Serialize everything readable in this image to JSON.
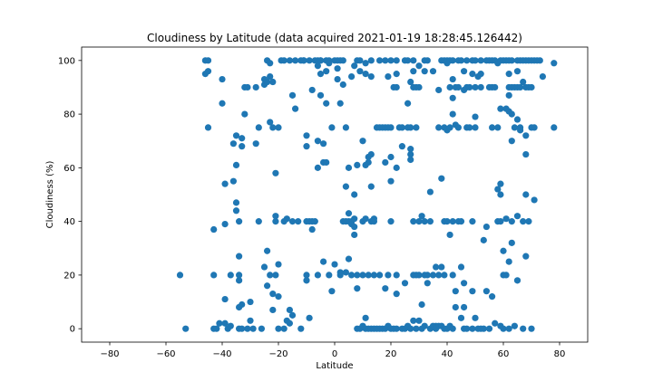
{
  "chart_data": {
    "type": "scatter",
    "title": "Cloudiness by Latitude (data acquired 2021-01-19 18:28:45.126442)",
    "xlabel": "Latitude",
    "ylabel": "Cloudiness (%)",
    "xlim": [
      -90,
      90
    ],
    "ylim": [
      -5,
      105
    ],
    "xticks": [
      -80,
      -60,
      -40,
      -20,
      0,
      20,
      40,
      60,
      80
    ],
    "yticks": [
      0,
      20,
      40,
      60,
      80,
      100
    ],
    "grid": false,
    "legend": "none",
    "marker_color": "#1f77b4",
    "points": [
      [
        -55,
        20
      ],
      [
        -53,
        0
      ],
      [
        -46,
        100
      ],
      [
        -45,
        100
      ],
      [
        -46,
        95
      ],
      [
        -45,
        96
      ],
      [
        -45,
        75
      ],
      [
        -43,
        37
      ],
      [
        -43,
        20
      ],
      [
        -43,
        0
      ],
      [
        -42,
        0
      ],
      [
        -41,
        2
      ],
      [
        -40,
        93
      ],
      [
        -40,
        84
      ],
      [
        -39,
        54
      ],
      [
        -39,
        39
      ],
      [
        -39,
        11
      ],
      [
        -39,
        2
      ],
      [
        -38,
        0
      ],
      [
        -37,
        20
      ],
      [
        -37,
        1
      ],
      [
        -36,
        55
      ],
      [
        -36,
        69
      ],
      [
        -35,
        72
      ],
      [
        -35,
        61
      ],
      [
        -35,
        47
      ],
      [
        -35,
        44
      ],
      [
        -34,
        40
      ],
      [
        -34,
        27
      ],
      [
        -34,
        20
      ],
      [
        -34,
        18
      ],
      [
        -34,
        8
      ],
      [
        -34,
        0
      ],
      [
        -33,
        71
      ],
      [
        -33,
        68
      ],
      [
        -33,
        0
      ],
      [
        -33,
        9
      ],
      [
        -32,
        90
      ],
      [
        -32,
        80
      ],
      [
        -31,
        90
      ],
      [
        -31,
        0
      ],
      [
        -30,
        10
      ],
      [
        -30,
        3
      ],
      [
        -29,
        0
      ],
      [
        -28,
        90
      ],
      [
        -28,
        69
      ],
      [
        -27,
        75
      ],
      [
        -27,
        40
      ],
      [
        -26,
        0
      ],
      [
        -25,
        91
      ],
      [
        -25,
        23
      ],
      [
        -25,
        93
      ],
      [
        -24,
        100
      ],
      [
        -24,
        92
      ],
      [
        -24,
        29
      ],
      [
        -24,
        16
      ],
      [
        -23,
        99
      ],
      [
        -23,
        94
      ],
      [
        -23,
        77
      ],
      [
        -23,
        20
      ],
      [
        -22,
        92
      ],
      [
        -22,
        75
      ],
      [
        -22,
        13
      ],
      [
        -22,
        7
      ],
      [
        -21,
        58
      ],
      [
        -21,
        40
      ],
      [
        -21,
        42
      ],
      [
        -21,
        20
      ],
      [
        -20,
        24
      ],
      [
        -20,
        12
      ],
      [
        -20,
        0
      ],
      [
        -20,
        75
      ],
      [
        -19,
        100
      ],
      [
        -18,
        100
      ],
      [
        -18,
        40
      ],
      [
        -18,
        0
      ],
      [
        -17,
        3
      ],
      [
        -17,
        41
      ],
      [
        -16,
        100
      ],
      [
        -16,
        7
      ],
      [
        -16,
        2
      ],
      [
        -15,
        87
      ],
      [
        -15,
        5
      ],
      [
        -15,
        40
      ],
      [
        -14,
        100
      ],
      [
        -14,
        82
      ],
      [
        -13,
        40
      ],
      [
        -12,
        100
      ],
      [
        -12,
        0
      ],
      [
        -11,
        100
      ],
      [
        -11,
        100
      ],
      [
        -10,
        72
      ],
      [
        -10,
        68
      ],
      [
        -10,
        40
      ],
      [
        -10,
        20
      ],
      [
        -10,
        18
      ],
      [
        -9,
        100
      ],
      [
        -9,
        40
      ],
      [
        -9,
        4
      ],
      [
        -8,
        89
      ],
      [
        -8,
        40
      ],
      [
        -8,
        37
      ],
      [
        -7,
        100
      ],
      [
        -7,
        40
      ],
      [
        -6,
        100
      ],
      [
        -6,
        70
      ],
      [
        -6,
        98
      ],
      [
        -6,
        60
      ],
      [
        -6,
        20
      ],
      [
        -5,
        100
      ],
      [
        -5,
        95
      ],
      [
        -5,
        87
      ],
      [
        -5,
        100
      ],
      [
        -4,
        69
      ],
      [
        -4,
        62
      ],
      [
        -4,
        25
      ],
      [
        -3,
        100
      ],
      [
        -3,
        96
      ],
      [
        -3,
        62
      ],
      [
        -3,
        84
      ],
      [
        -2,
        100
      ],
      [
        -2,
        99
      ],
      [
        -2,
        20
      ],
      [
        -1,
        75
      ],
      [
        -1,
        14
      ],
      [
        0,
        100
      ],
      [
        0,
        24
      ],
      [
        1,
        100
      ],
      [
        1,
        97
      ],
      [
        1,
        93
      ],
      [
        2,
        100
      ],
      [
        2,
        20
      ],
      [
        2,
        21
      ],
      [
        2,
        84
      ],
      [
        3,
        91
      ],
      [
        3,
        100
      ],
      [
        3,
        40
      ],
      [
        4,
        40
      ],
      [
        4,
        53
      ],
      [
        4,
        75
      ],
      [
        4,
        21
      ],
      [
        5,
        40
      ],
      [
        5,
        60
      ],
      [
        5,
        26
      ],
      [
        5,
        43
      ],
      [
        6,
        40
      ],
      [
        6,
        94
      ],
      [
        6,
        20
      ],
      [
        6,
        39
      ],
      [
        7,
        98
      ],
      [
        7,
        41
      ],
      [
        7,
        38
      ],
      [
        7,
        35
      ],
      [
        7,
        50
      ],
      [
        8,
        100
      ],
      [
        8,
        61
      ],
      [
        8,
        20
      ],
      [
        8,
        15
      ],
      [
        8,
        0
      ],
      [
        9,
        0
      ],
      [
        9,
        100
      ],
      [
        9,
        96
      ],
      [
        10,
        70
      ],
      [
        10,
        40
      ],
      [
        10,
        20
      ],
      [
        10,
        1
      ],
      [
        11,
        99
      ],
      [
        11,
        95
      ],
      [
        11,
        61
      ],
      [
        11,
        41
      ],
      [
        11,
        4
      ],
      [
        11,
        0
      ],
      [
        12,
        64
      ],
      [
        12,
        62
      ],
      [
        12,
        20
      ],
      [
        12,
        0
      ],
      [
        13,
        100
      ],
      [
        13,
        94
      ],
      [
        13,
        65
      ],
      [
        13,
        40
      ],
      [
        13,
        53
      ],
      [
        13,
        0
      ],
      [
        14,
        41
      ],
      [
        14,
        40
      ],
      [
        14,
        20
      ],
      [
        14,
        0
      ],
      [
        15,
        75
      ],
      [
        15,
        0
      ],
      [
        16,
        100
      ],
      [
        16,
        75
      ],
      [
        16,
        20
      ],
      [
        16,
        0
      ],
      [
        17,
        75
      ],
      [
        17,
        0
      ],
      [
        18,
        100
      ],
      [
        18,
        75
      ],
      [
        18,
        62
      ],
      [
        18,
        15
      ],
      [
        18,
        0
      ],
      [
        19,
        94
      ],
      [
        19,
        75
      ],
      [
        19,
        20
      ],
      [
        19,
        1
      ],
      [
        20,
        100
      ],
      [
        20,
        75
      ],
      [
        20,
        64
      ],
      [
        20,
        55
      ],
      [
        20,
        40
      ],
      [
        20,
        0
      ],
      [
        21,
        90
      ],
      [
        21,
        0
      ],
      [
        22,
        100
      ],
      [
        22,
        95
      ],
      [
        22,
        90
      ],
      [
        22,
        60
      ],
      [
        22,
        20
      ],
      [
        22,
        13
      ],
      [
        22,
        0
      ],
      [
        23,
        75
      ],
      [
        24,
        75
      ],
      [
        24,
        68
      ],
      [
        24,
        0
      ],
      [
        25,
        100
      ],
      [
        25,
        17
      ],
      [
        25,
        0
      ],
      [
        26,
        100
      ],
      [
        26,
        84
      ],
      [
        26,
        75
      ],
      [
        26,
        1
      ],
      [
        27,
        92
      ],
      [
        27,
        75
      ],
      [
        27,
        65
      ],
      [
        27,
        67
      ],
      [
        27,
        63
      ],
      [
        27,
        0
      ],
      [
        28,
        100
      ],
      [
        28,
        96
      ],
      [
        28,
        90
      ],
      [
        28,
        40
      ],
      [
        28,
        20
      ],
      [
        28,
        3
      ],
      [
        29,
        90
      ],
      [
        29,
        75
      ],
      [
        29,
        20
      ],
      [
        29,
        0
      ],
      [
        30,
        98
      ],
      [
        30,
        90
      ],
      [
        30,
        40
      ],
      [
        30,
        20
      ],
      [
        30,
        3
      ],
      [
        31,
        42
      ],
      [
        31,
        9
      ],
      [
        31,
        0
      ],
      [
        32,
        100
      ],
      [
        32,
        96
      ],
      [
        32,
        40
      ],
      [
        32,
        20
      ],
      [
        32,
        1
      ],
      [
        33,
        100
      ],
      [
        33,
        20
      ],
      [
        33,
        17
      ],
      [
        34,
        51
      ],
      [
        34,
        40
      ],
      [
        34,
        0
      ],
      [
        35,
        96
      ],
      [
        35,
        20
      ],
      [
        35,
        1
      ],
      [
        36,
        23
      ],
      [
        36,
        1
      ],
      [
        36,
        0
      ],
      [
        37,
        89
      ],
      [
        37,
        75
      ],
      [
        37,
        20
      ],
      [
        37,
        1
      ],
      [
        38,
        100
      ],
      [
        38,
        56
      ],
      [
        38,
        23
      ],
      [
        38,
        1
      ],
      [
        39,
        100
      ],
      [
        39,
        75
      ],
      [
        39,
        40
      ],
      [
        39,
        20
      ],
      [
        39,
        0
      ],
      [
        40,
        99
      ],
      [
        40,
        100
      ],
      [
        40,
        74
      ],
      [
        40,
        40
      ],
      [
        40,
        0
      ],
      [
        41,
        100
      ],
      [
        41,
        90
      ],
      [
        41,
        75
      ],
      [
        41,
        35
      ],
      [
        41,
        1
      ],
      [
        42,
        100
      ],
      [
        42,
        93
      ],
      [
        42,
        86
      ],
      [
        42,
        80
      ],
      [
        42,
        40
      ],
      [
        42,
        20
      ],
      [
        42,
        0
      ],
      [
        43,
        90
      ],
      [
        43,
        76
      ],
      [
        43,
        14
      ],
      [
        43,
        8
      ],
      [
        44,
        100
      ],
      [
        44,
        90
      ],
      [
        44,
        75
      ],
      [
        44,
        40
      ],
      [
        45,
        100
      ],
      [
        45,
        40
      ],
      [
        45,
        23
      ],
      [
        45,
        4
      ],
      [
        46,
        96
      ],
      [
        46,
        89
      ],
      [
        46,
        17
      ],
      [
        46,
        8
      ],
      [
        46,
        0
      ],
      [
        47,
        100
      ],
      [
        47,
        90
      ],
      [
        47,
        75
      ],
      [
        47,
        0
      ],
      [
        48,
        90
      ],
      [
        48,
        75
      ],
      [
        49,
        100
      ],
      [
        49,
        95
      ],
      [
        49,
        40
      ],
      [
        49,
        14
      ],
      [
        49,
        0
      ],
      [
        50,
        100
      ],
      [
        50,
        90
      ],
      [
        50,
        79
      ],
      [
        50,
        75
      ],
      [
        50,
        4
      ],
      [
        51,
        94
      ],
      [
        51,
        0
      ],
      [
        52,
        100
      ],
      [
        52,
        95
      ],
      [
        52,
        90
      ],
      [
        52,
        0
      ],
      [
        53,
        33
      ],
      [
        53,
        0
      ],
      [
        54,
        100
      ],
      [
        54,
        38
      ],
      [
        54,
        14
      ],
      [
        55,
        100
      ],
      [
        55,
        90
      ],
      [
        55,
        0
      ],
      [
        56,
        100
      ],
      [
        56,
        90
      ],
      [
        56,
        75
      ],
      [
        56,
        12
      ],
      [
        57,
        100
      ],
      [
        57,
        90
      ],
      [
        57,
        2
      ],
      [
        58,
        99
      ],
      [
        58,
        75
      ],
      [
        58,
        52
      ],
      [
        58,
        40
      ],
      [
        59,
        100
      ],
      [
        59,
        82
      ],
      [
        59,
        54
      ],
      [
        59,
        50
      ],
      [
        59,
        40
      ],
      [
        59,
        1
      ],
      [
        60,
        100
      ],
      [
        60,
        29
      ],
      [
        60,
        20
      ],
      [
        60,
        0
      ],
      [
        61,
        100
      ],
      [
        61,
        82
      ],
      [
        61,
        41
      ],
      [
        61,
        20
      ],
      [
        62,
        100
      ],
      [
        62,
        95
      ],
      [
        62,
        90
      ],
      [
        62,
        87
      ],
      [
        62,
        81
      ],
      [
        62,
        25
      ],
      [
        62,
        0
      ],
      [
        63,
        100
      ],
      [
        63,
        90
      ],
      [
        63,
        80
      ],
      [
        63,
        70
      ],
      [
        63,
        40
      ],
      [
        63,
        32
      ],
      [
        64,
        90
      ],
      [
        64,
        75
      ],
      [
        64,
        1
      ],
      [
        65,
        100
      ],
      [
        65,
        96
      ],
      [
        65,
        90
      ],
      [
        65,
        78
      ],
      [
        65,
        42
      ],
      [
        65,
        18
      ],
      [
        66,
        100
      ],
      [
        66,
        90
      ],
      [
        66,
        75
      ],
      [
        66,
        74
      ],
      [
        67,
        100
      ],
      [
        67,
        92
      ],
      [
        67,
        40
      ],
      [
        67,
        0
      ],
      [
        68,
        100
      ],
      [
        68,
        90
      ],
      [
        68,
        72
      ],
      [
        68,
        65
      ],
      [
        68,
        50
      ],
      [
        68,
        27
      ],
      [
        69,
        100
      ],
      [
        69,
        90
      ],
      [
        69,
        40
      ],
      [
        70,
        100
      ],
      [
        70,
        90
      ],
      [
        70,
        75
      ],
      [
        70,
        0
      ],
      [
        71,
        100
      ],
      [
        71,
        75
      ],
      [
        71,
        48
      ],
      [
        72,
        100
      ],
      [
        73,
        100
      ],
      [
        74,
        94
      ],
      [
        78,
        99
      ],
      [
        78,
        75
      ]
    ]
  }
}
